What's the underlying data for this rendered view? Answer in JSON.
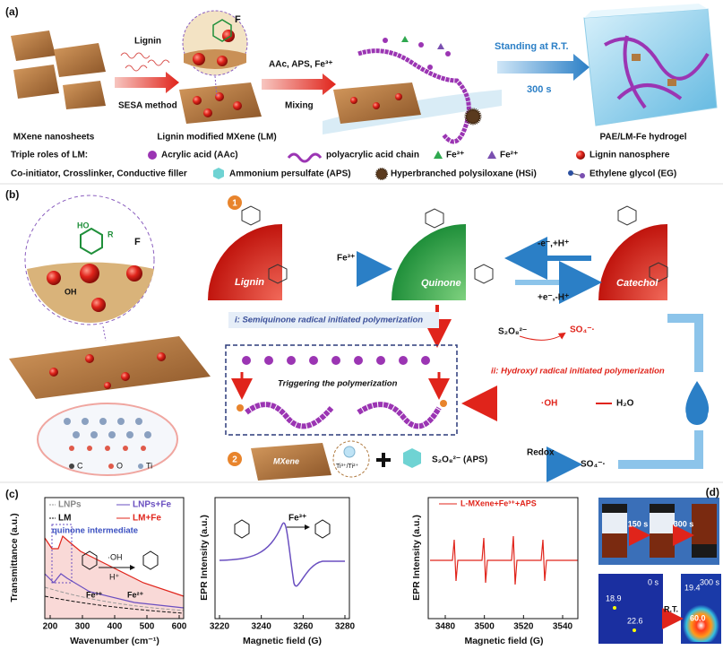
{
  "panel_a": {
    "label": "(a)",
    "lignin": "Lignin",
    "sesa": "SESA method",
    "reagents": "AAc, APS, Fe³⁺",
    "mixing": "Mixing",
    "standing": "Standing at R.T.",
    "time": "300 s",
    "captions": [
      "MXene nanosheets",
      "Lignin modified MXene (LM)",
      "PAE/LM-Fe hydrogel"
    ],
    "zoom_f": "F",
    "legend_title": "Triple roles of LM:",
    "legend_subtitle": "Co-initiator, Crosslinker, Conductive filler",
    "legend": [
      "Acrylic acid (AAc)",
      "polyacrylic acid chain",
      "Fe³⁺",
      "Fe²⁺",
      "Lignin nanosphere",
      "Ammonium persulfate (APS)",
      "Hyperbranched polysiloxane (HSi)",
      "Ethylene glycol (EG)"
    ]
  },
  "panel_b": {
    "label": "(b)",
    "zoom": {
      "f": "F",
      "ho": "HO",
      "oh": "OH",
      "r": "R"
    },
    "atoms": [
      "C",
      "O",
      "Ti"
    ],
    "route1": "1",
    "lignin": "Lignin",
    "fe3": "Fe³⁺",
    "quinone": "Quinone",
    "catechol": "Catechol",
    "oxidation": "-e⁻,+H⁺",
    "reduction": "+e⁻,-H⁺",
    "persulfate": "S₂O₈²⁻",
    "sulfate_radical": "SO₄⁻·",
    "pathway_i": "i: Semiquinone radical  initiated polymerization",
    "trigger": "Triggering the polymerization",
    "pathway_ii": "ii: Hydroxyl radical initiated polymerization",
    "hydroxyl": "·OH",
    "water": "H₂O",
    "route2": "2",
    "mxene": "MXene",
    "titanium": "Ti³⁺/Ti²⁺",
    "aps": "S₂O₈²⁻ (APS)",
    "redox": "Redox",
    "sulfate_radical_2": "SO₄⁻·"
  },
  "panel_c": {
    "label": "(c)",
    "ftir": {
      "ylabel": "Transmittance (a.u.)",
      "xlabel": "Wavenumber (cm⁻¹)",
      "xticks": [
        200,
        300,
        400,
        500,
        600
      ],
      "legend": [
        "LNPs",
        "LM",
        "LNPs+Fe",
        "LM+Fe"
      ],
      "annotation": "quinone intermediate",
      "scheme": [
        "·OH",
        "H⁺",
        "Fe³⁺",
        "Fe²⁺"
      ]
    },
    "epr_lignin": {
      "ylabel": "EPR Intensity (a.u.)",
      "xlabel": "Magnetic field (G)",
      "xticks": [
        3220,
        3240,
        3260,
        3280
      ],
      "reagent": "Fe³⁺"
    },
    "epr_mxene": {
      "ylabel": "EPR Intensity (a.u.)",
      "xlabel": "Magnetic field (G)",
      "xticks": [
        3480,
        3500,
        3520,
        3540
      ],
      "legend": "L-MXene+Fe³⁺+APS"
    }
  },
  "panel_d": {
    "label": "(d)",
    "times": [
      "150 s",
      "300 s"
    ],
    "thermal_times": [
      "0 s",
      "300 s"
    ],
    "condition": "R.T.",
    "temperatures_before": [
      "18.9",
      "22.6"
    ],
    "temperatures_after": [
      "19.4",
      "60.0"
    ]
  }
}
